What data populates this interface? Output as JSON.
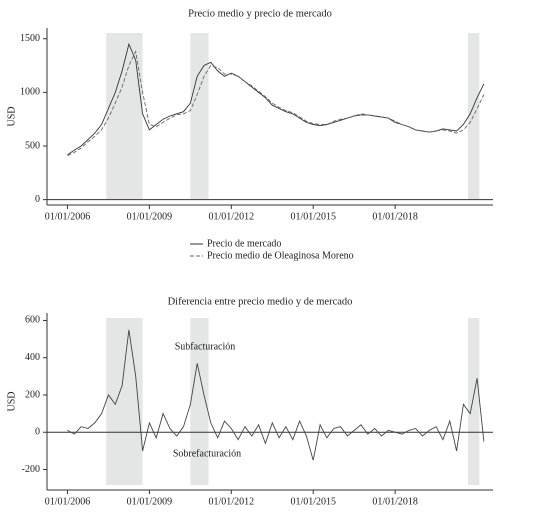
{
  "chart_data": [
    {
      "type": "line",
      "title": "Precio medio y precio de mercado",
      "ylabel": "USD",
      "x": [
        "01/01/2006",
        "01/04/2006",
        "01/07/2006",
        "01/10/2006",
        "01/01/2007",
        "01/04/2007",
        "01/07/2007",
        "01/10/2007",
        "01/01/2008",
        "01/04/2008",
        "01/07/2008",
        "01/10/2008",
        "01/01/2009",
        "01/04/2009",
        "01/07/2009",
        "01/10/2009",
        "01/01/2010",
        "01/04/2010",
        "01/07/2010",
        "01/10/2010",
        "01/01/2011",
        "01/04/2011",
        "01/07/2011",
        "01/10/2011",
        "01/01/2012",
        "01/04/2012",
        "01/07/2012",
        "01/10/2012",
        "01/01/2013",
        "01/04/2013",
        "01/07/2013",
        "01/10/2013",
        "01/01/2014",
        "01/04/2014",
        "01/07/2014",
        "01/10/2014",
        "01/01/2015",
        "01/04/2015",
        "01/07/2015",
        "01/10/2015",
        "01/01/2016",
        "01/04/2016",
        "01/07/2016",
        "01/10/2016",
        "01/01/2017",
        "01/04/2017",
        "01/07/2017",
        "01/10/2017",
        "01/01/2018",
        "01/04/2018",
        "01/07/2018",
        "01/10/2018",
        "01/01/2019",
        "01/04/2019",
        "01/07/2019",
        "01/10/2019",
        "01/01/2020",
        "01/04/2020",
        "01/07/2020",
        "01/10/2020",
        "01/01/2021",
        "01/04/2021"
      ],
      "series": [
        {
          "name": "Precio de mercado",
          "color": "#333333",
          "dash": false,
          "values": [
            420,
            460,
            500,
            560,
            620,
            700,
            850,
            1000,
            1200,
            1450,
            1300,
            800,
            650,
            700,
            750,
            780,
            800,
            820,
            900,
            1150,
            1250,
            1280,
            1200,
            1150,
            1180,
            1150,
            1100,
            1050,
            1000,
            950,
            880,
            850,
            820,
            800,
            760,
            720,
            700,
            690,
            700,
            720,
            740,
            760,
            780,
            790,
            790,
            780,
            770,
            760,
            720,
            700,
            680,
            650,
            640,
            630,
            640,
            660,
            650,
            640,
            700,
            800,
            950,
            1080
          ]
        },
        {
          "name": "Precio medio de Oleaginosa Moreno",
          "color": "#666666",
          "dash": true,
          "values": [
            410,
            440,
            480,
            540,
            590,
            650,
            760,
            900,
            1050,
            1250,
            1380,
            1000,
            700,
            680,
            720,
            760,
            790,
            800,
            830,
            980,
            1150,
            1250,
            1230,
            1170,
            1170,
            1150,
            1100,
            1060,
            1010,
            960,
            900,
            860,
            830,
            810,
            770,
            730,
            710,
            700,
            700,
            730,
            750,
            760,
            780,
            800,
            790,
            780,
            770,
            760,
            730,
            700,
            680,
            650,
            640,
            630,
            640,
            650,
            640,
            620,
            650,
            720,
            850,
            980
          ]
        }
      ],
      "xlim": [
        "01/04/2005",
        "01/08/2021"
      ],
      "xticks": [
        "01/01/2006",
        "01/01/2009",
        "01/01/2012",
        "01/01/2015",
        "01/01/2018"
      ],
      "ylim": [
        -50,
        1600
      ],
      "yticks": [
        0,
        500,
        1000,
        1500
      ],
      "shaded": [
        [
          "01/06/2007",
          "01/10/2008"
        ],
        [
          "01/07/2010",
          "01/03/2011"
        ],
        [
          "01/09/2020",
          "01/02/2021"
        ]
      ]
    },
    {
      "type": "line",
      "title": "Diferencia entre precio medio y de mercado",
      "ylabel": "USD",
      "x": [
        "01/01/2006",
        "01/04/2006",
        "01/07/2006",
        "01/10/2006",
        "01/01/2007",
        "01/04/2007",
        "01/07/2007",
        "01/10/2007",
        "01/01/2008",
        "01/04/2008",
        "01/07/2008",
        "01/10/2008",
        "01/01/2009",
        "01/04/2009",
        "01/07/2009",
        "01/10/2009",
        "01/01/2010",
        "01/04/2010",
        "01/07/2010",
        "01/10/2010",
        "01/01/2011",
        "01/04/2011",
        "01/07/2011",
        "01/10/2011",
        "01/01/2012",
        "01/04/2012",
        "01/07/2012",
        "01/10/2012",
        "01/01/2013",
        "01/04/2013",
        "01/07/2013",
        "01/10/2013",
        "01/01/2014",
        "01/04/2014",
        "01/07/2014",
        "01/10/2014",
        "01/01/2015",
        "01/04/2015",
        "01/07/2015",
        "01/10/2015",
        "01/01/2016",
        "01/04/2016",
        "01/07/2016",
        "01/10/2016",
        "01/01/2017",
        "01/04/2017",
        "01/07/2017",
        "01/10/2017",
        "01/01/2018",
        "01/04/2018",
        "01/07/2018",
        "01/10/2018",
        "01/01/2019",
        "01/04/2019",
        "01/07/2019",
        "01/10/2019",
        "01/01/2020",
        "01/04/2020",
        "01/07/2020",
        "01/10/2020",
        "01/01/2021",
        "01/04/2021"
      ],
      "series": [
        {
          "color": "#444444",
          "dash": false,
          "values": [
            10,
            -10,
            30,
            20,
            50,
            100,
            200,
            150,
            250,
            550,
            300,
            -100,
            50,
            -30,
            100,
            20,
            -20,
            30,
            150,
            370,
            200,
            50,
            -30,
            60,
            20,
            -40,
            30,
            -20,
            40,
            -60,
            50,
            -30,
            30,
            -40,
            60,
            -20,
            -150,
            40,
            -30,
            20,
            30,
            -20,
            10,
            40,
            -10,
            20,
            -20,
            10,
            0,
            -10,
            10,
            20,
            -20,
            10,
            30,
            -40,
            60,
            -100,
            150,
            100,
            290,
            -50
          ]
        }
      ],
      "xlim": [
        "01/04/2005",
        "01/08/2021"
      ],
      "xticks": [
        "01/01/2006",
        "01/01/2009",
        "01/01/2012",
        "01/01/2015",
        "01/01/2018"
      ],
      "ylim": [
        -310,
        640
      ],
      "yticks": [
        -200,
        0,
        200,
        400,
        600
      ],
      "shaded": [
        [
          "01/06/2007",
          "01/10/2008"
        ],
        [
          "01/07/2010",
          "01/03/2011"
        ],
        [
          "01/09/2020",
          "01/02/2021"
        ]
      ],
      "annotations": [
        "Subfacturación",
        "Sobrefacturación"
      ]
    }
  ]
}
